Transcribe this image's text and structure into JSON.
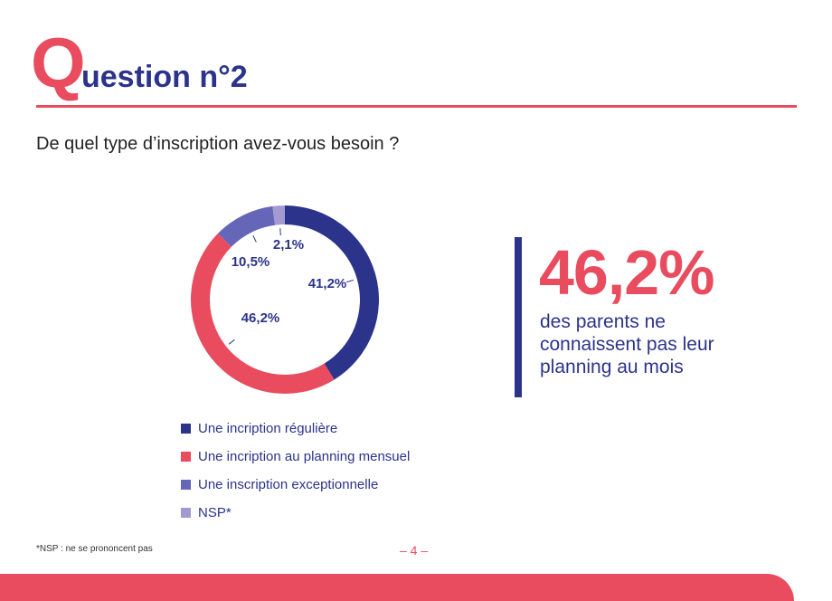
{
  "header": {
    "q_letter": "Q",
    "title_rest": "uestion n°2"
  },
  "question": "De quel type d’inscription avez-vous besoin ?",
  "colors": {
    "accent": "#e84c5e",
    "primary": "#2b338a"
  },
  "chart_data": {
    "type": "pie",
    "donut": true,
    "slices": [
      {
        "name": "Une incription régulière",
        "value": 41.2,
        "label": "41,2%",
        "color": "#2b338a"
      },
      {
        "name": "Une incription au planning mensuel",
        "value": 46.2,
        "label": "46,2%",
        "color": "#e84c5e"
      },
      {
        "name": "Une inscription exceptionnelle",
        "value": 10.5,
        "label": "10,5%",
        "color": "#6566b8"
      },
      {
        "name": "NSP*",
        "value": 2.1,
        "label": "2,1%",
        "color": "#a49ad1"
      }
    ],
    "legend_position": "bottom"
  },
  "highlight": {
    "value": "46,2%",
    "text": "des parents ne connaissent pas leur planning au mois"
  },
  "footnote": "*NSP : ne se prononcent pas",
  "page_number": "– 4 –"
}
